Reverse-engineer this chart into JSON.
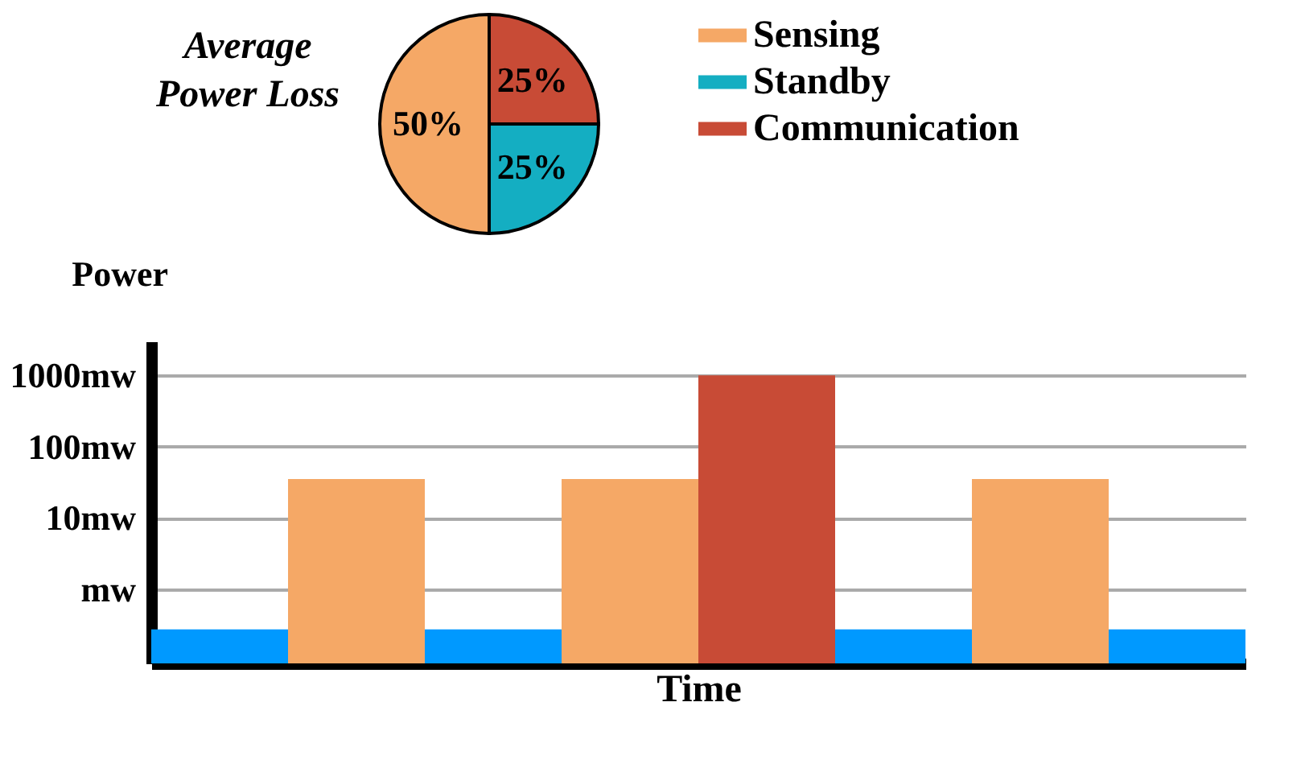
{
  "chart_data": [
    {
      "type": "pie",
      "title": "Average Power Loss",
      "categories": [
        "Sensing",
        "Standby",
        "Communication"
      ],
      "values": [
        50,
        25,
        25
      ],
      "value_labels": [
        "50%",
        "25%",
        "25%"
      ],
      "colors": [
        "#f5a866",
        "#14aec2",
        "#c84b36"
      ],
      "legend": "right"
    },
    {
      "type": "bar",
      "xlabel": "Time",
      "ylabel": "Power",
      "categories": [
        null,
        null,
        null,
        null,
        null,
        null,
        null,
        null
      ],
      "log": true,
      "ylim": [
        0.09,
        3000
      ],
      "yticks": [
        {
          "value": 1,
          "label": "mw"
        },
        {
          "value": 10,
          "label": "10mw"
        },
        {
          "value": 100,
          "label": "100mw"
        },
        {
          "value": 1000,
          "label": "1000mw"
        }
      ],
      "grid": "y",
      "tick_labels": "y",
      "legend": false,
      "series": [
        {
          "color": "#0099ff",
          "values": [
            0.27,
            null,
            0.27,
            null,
            null,
            0.27,
            null,
            0.27
          ]
        },
        {
          "color": "#f5a866",
          "values": [
            null,
            35,
            null,
            35,
            null,
            null,
            35,
            null
          ]
        },
        {
          "color": "#c84b36",
          "values": [
            null,
            null,
            null,
            null,
            1000,
            null,
            null,
            null
          ]
        }
      ]
    }
  ]
}
